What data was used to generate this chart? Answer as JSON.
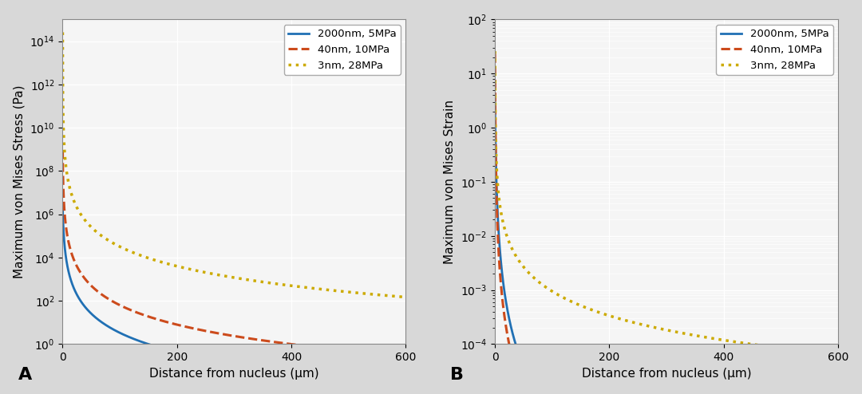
{
  "xlabel": "Distance from nucleus (μm)",
  "ylabel_A": "Maximum von Mises Stress (Pa)",
  "ylabel_B": "Maximum von Mises Strain",
  "label_A": "A",
  "label_B": "B",
  "legend_entries": [
    "2000nm, 5MPa",
    "40nm, 10MPa",
    "3nm, 28MPa"
  ],
  "colors": [
    "#2070b4",
    "#cc4b1c",
    "#ccaa00"
  ],
  "linestyles": [
    "-",
    "--",
    ":"
  ],
  "linewidths": [
    2.0,
    2.2,
    2.5
  ],
  "xlim": [
    0,
    600
  ],
  "ylim_A": [
    1.0,
    1000000000000000.0
  ],
  "ylim_B": [
    0.0001,
    100.0
  ],
  "x_ticks": [
    0,
    200,
    400,
    600
  ],
  "panel_A": {
    "blue_C": 2000000.0,
    "blue_R": 1.2,
    "blue_n": 3.0,
    "red_C": 1000000000.0,
    "red_R": 0.4,
    "red_n": 3.0,
    "yellow_C": 500000000000000.0,
    "yellow_R": 0.04,
    "yellow_n": 3.0
  },
  "panel_B": {
    "blue_C": 3.0,
    "blue_R": 1.2,
    "blue_n": 3.0,
    "red_C": 25.0,
    "red_R": 0.4,
    "red_n": 3.0,
    "yellow_C": 30.0,
    "yellow_R": 0.1,
    "yellow_n": 1.5
  },
  "background_color": "#f5f5f5",
  "grid_color": "#ffffff",
  "fig_facecolor": "#d8d8d8",
  "fig_width": 10.8,
  "fig_height": 4.94,
  "dpi": 100
}
